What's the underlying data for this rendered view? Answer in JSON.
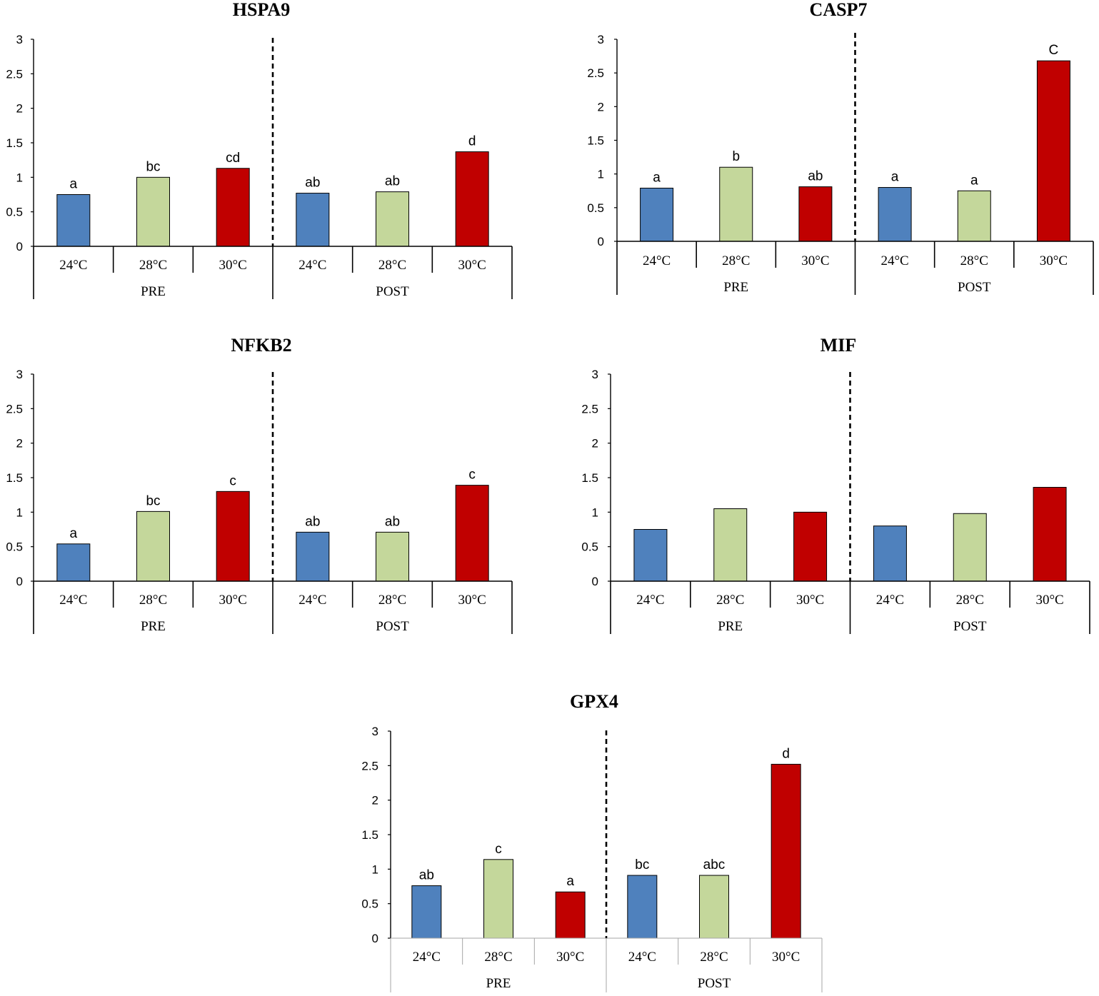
{
  "figure": {
    "colors": {
      "24°C": "#4f81bd",
      "28°C": "#c4d79b",
      "30°C": "#c00000"
    }
  },
  "chart_data": [
    {
      "type": "bar",
      "title": "HSPA9",
      "ylim": [
        0,
        3
      ],
      "yticks": [
        "0",
        "0.5",
        "1",
        "1.5",
        "2",
        "2.5",
        "3"
      ],
      "groups": [
        "PRE",
        "POST"
      ],
      "categories": [
        "24°C",
        "28°C",
        "30°C",
        "24°C",
        "28°C",
        "30°C"
      ],
      "values": [
        0.75,
        1.0,
        1.13,
        0.77,
        0.79,
        1.37
      ],
      "labels": [
        "a",
        "bc",
        "cd",
        "ab",
        "ab",
        "d"
      ]
    },
    {
      "type": "bar",
      "title": "CASP7",
      "ylim": [
        0,
        3
      ],
      "yticks": [
        "0",
        "0.5",
        "1",
        "1.5",
        "2",
        "2.5",
        "3"
      ],
      "groups": [
        "PRE",
        "POST"
      ],
      "categories": [
        "24°C",
        "28°C",
        "30°C",
        "24°C",
        "28°C",
        "30°C"
      ],
      "values": [
        0.79,
        1.1,
        0.81,
        0.8,
        0.75,
        2.68
      ],
      "labels": [
        "a",
        "b",
        "ab",
        "a",
        "a",
        "C"
      ]
    },
    {
      "type": "bar",
      "title": "NFKB2",
      "ylim": [
        0,
        3
      ],
      "yticks": [
        "0",
        "0.5",
        "1",
        "1.5",
        "2",
        "2.5",
        "3"
      ],
      "groups": [
        "PRE",
        "POST"
      ],
      "categories": [
        "24°C",
        "28°C",
        "30°C",
        "24°C",
        "28°C",
        "30°C"
      ],
      "values": [
        0.54,
        1.01,
        1.3,
        0.71,
        0.71,
        1.39
      ],
      "labels": [
        "a",
        "bc",
        "c",
        "ab",
        "ab",
        "c"
      ]
    },
    {
      "type": "bar",
      "title": "MIF",
      "ylim": [
        0,
        3
      ],
      "yticks": [
        "0",
        "0.5",
        "1",
        "1.5",
        "2",
        "2.5",
        "3"
      ],
      "groups": [
        "PRE",
        "POST"
      ],
      "categories": [
        "24°C",
        "28°C",
        "30°C",
        "24°C",
        "28°C",
        "30°C"
      ],
      "values": [
        0.75,
        1.05,
        1.0,
        0.8,
        0.98,
        1.36
      ],
      "labels": [
        "",
        "",
        "",
        "",
        "",
        ""
      ]
    },
    {
      "type": "bar",
      "title": "GPX4",
      "ylim": [
        0,
        3
      ],
      "yticks": [
        "0",
        "0.5",
        "1",
        "1.5",
        "2",
        "2.5",
        "3"
      ],
      "groups": [
        "PRE",
        "POST"
      ],
      "categories": [
        "24°C",
        "28°C",
        "30°C",
        "24°C",
        "28°C",
        "30°C"
      ],
      "values": [
        0.76,
        1.14,
        0.67,
        0.91,
        0.91,
        2.52
      ],
      "labels": [
        "ab",
        "c",
        "a",
        "bc",
        "abc",
        "d"
      ]
    }
  ]
}
